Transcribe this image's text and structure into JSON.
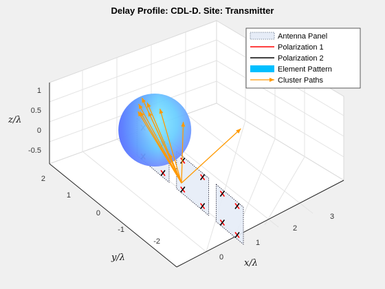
{
  "figure": {
    "title": "Delay Profile: CDL-D. Site: Transmitter"
  },
  "chart_data": {
    "type": "scatter",
    "title": "Delay Profile: CDL-D. Site: Transmitter",
    "xlabel": "x/λ",
    "ylabel": "y/λ",
    "zlabel": "z/λ",
    "xlim": [
      -0.5,
      3.5
    ],
    "ylim": [
      -2.5,
      2
    ],
    "zlim": [
      -1,
      1
    ],
    "x_ticks": [
      "0",
      "1",
      "2",
      "3"
    ],
    "y_ticks": [
      "-2",
      "-1",
      "0",
      "1",
      "2"
    ],
    "z_ticks": [
      "-0.5",
      "0",
      "0.5",
      "1"
    ],
    "grid": true,
    "legend_position": "top-right",
    "legend": [
      {
        "label": "Antenna Panel",
        "style": "panel",
        "color": "#5a6b80"
      },
      {
        "label": "Polarization 1",
        "style": "line",
        "color": "#ff0000"
      },
      {
        "label": "Polarization 2",
        "style": "line",
        "color": "#000000"
      },
      {
        "label": "Element Pattern",
        "style": "patch",
        "color": "#00bfff"
      },
      {
        "label": "Cluster Paths",
        "style": "arrow",
        "color": "#ff9900"
      }
    ],
    "antenna_panels": [
      {
        "y_range": [
          0.9,
          2.0
        ],
        "z_range": [
          -0.45,
          0.45
        ]
      },
      {
        "y_range": [
          -0.7,
          0.6
        ],
        "z_range": [
          -0.45,
          0.45
        ]
      },
      {
        "y_range": [
          -2.3,
          -1.0
        ],
        "z_range": [
          -0.45,
          0.45
        ]
      }
    ],
    "elements": [
      {
        "y": 1.75,
        "z": 0.35
      },
      {
        "y": 1.75,
        "z": -0.35
      },
      {
        "y": 1.15,
        "z": 0.35
      },
      {
        "y": 1.15,
        "z": -0.35
      },
      {
        "y": 0.35,
        "z": 0.35
      },
      {
        "y": 0.35,
        "z": -0.35
      },
      {
        "y": -0.45,
        "z": 0.35
      },
      {
        "y": -0.45,
        "z": -0.35
      },
      {
        "y": -1.25,
        "z": 0.35
      },
      {
        "y": -1.25,
        "z": -0.35
      },
      {
        "y": -2.05,
        "z": 0.35
      },
      {
        "y": -2.05,
        "z": -0.35
      }
    ],
    "element_pattern": {
      "center": [
        1.0,
        -2.3,
        0.0
      ],
      "radius": 1.0
    },
    "cluster_paths": [
      {
        "end": [
          3.6,
          -0.7,
          0.4
        ]
      },
      {
        "end": [
          0.0,
          -1.0,
          0.25
        ]
      },
      {
        "end": [
          1.9,
          -1.8,
          0.3
        ]
      },
      {
        "end": [
          1.7,
          -2.6,
          0.25
        ]
      },
      {
        "end": [
          1.4,
          -2.9,
          0.3
        ]
      },
      {
        "end": [
          1.2,
          -3.1,
          0.2
        ]
      },
      {
        "end": [
          1.8,
          -3.4,
          0.1
        ]
      },
      {
        "end": [
          1.3,
          -3.2,
          -0.05
        ]
      },
      {
        "end": [
          1.0,
          -2.9,
          0.15
        ]
      },
      {
        "end": [
          1.6,
          -3.0,
          0.0
        ]
      }
    ]
  }
}
